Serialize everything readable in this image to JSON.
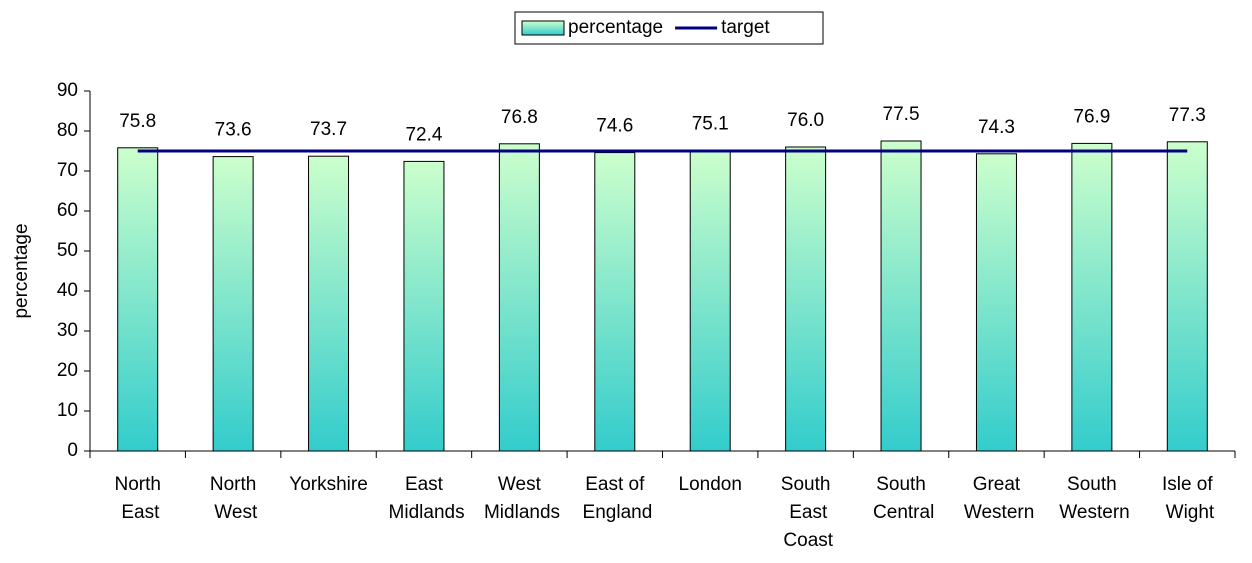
{
  "chart_data": {
    "type": "bar",
    "y_label": "percentage",
    "categories": [
      "North East",
      "North West",
      "Yorkshire",
      "East Midlands",
      "West Midlands",
      "East of England",
      "London",
      "South East Coast",
      "South Central",
      "Great Western",
      "South Western",
      "Isle of Wight"
    ],
    "series": [
      {
        "name": "percentage",
        "type": "bar",
        "colors": [
          "#ccffcc",
          "#33cccc"
        ],
        "values": [
          75.8,
          73.6,
          73.7,
          72.4,
          76.8,
          74.6,
          75.1,
          76.0,
          77.5,
          74.3,
          76.9,
          77.3
        ],
        "value_labels": [
          "75.8",
          "73.6",
          "73.7",
          "72.4",
          "76.8",
          "74.6",
          "75.1",
          "76.0",
          "77.5",
          "74.3",
          "76.9",
          "77.3"
        ]
      },
      {
        "name": "target",
        "type": "line",
        "color": "#000080",
        "values": [
          75,
          75,
          75,
          75,
          75,
          75,
          75,
          75,
          75,
          75,
          75,
          75
        ]
      }
    ],
    "ylim": [
      0,
      90
    ],
    "yticks": [
      0,
      10,
      20,
      30,
      40,
      50,
      60,
      70,
      80,
      90
    ],
    "grid": false,
    "legend": "top"
  }
}
